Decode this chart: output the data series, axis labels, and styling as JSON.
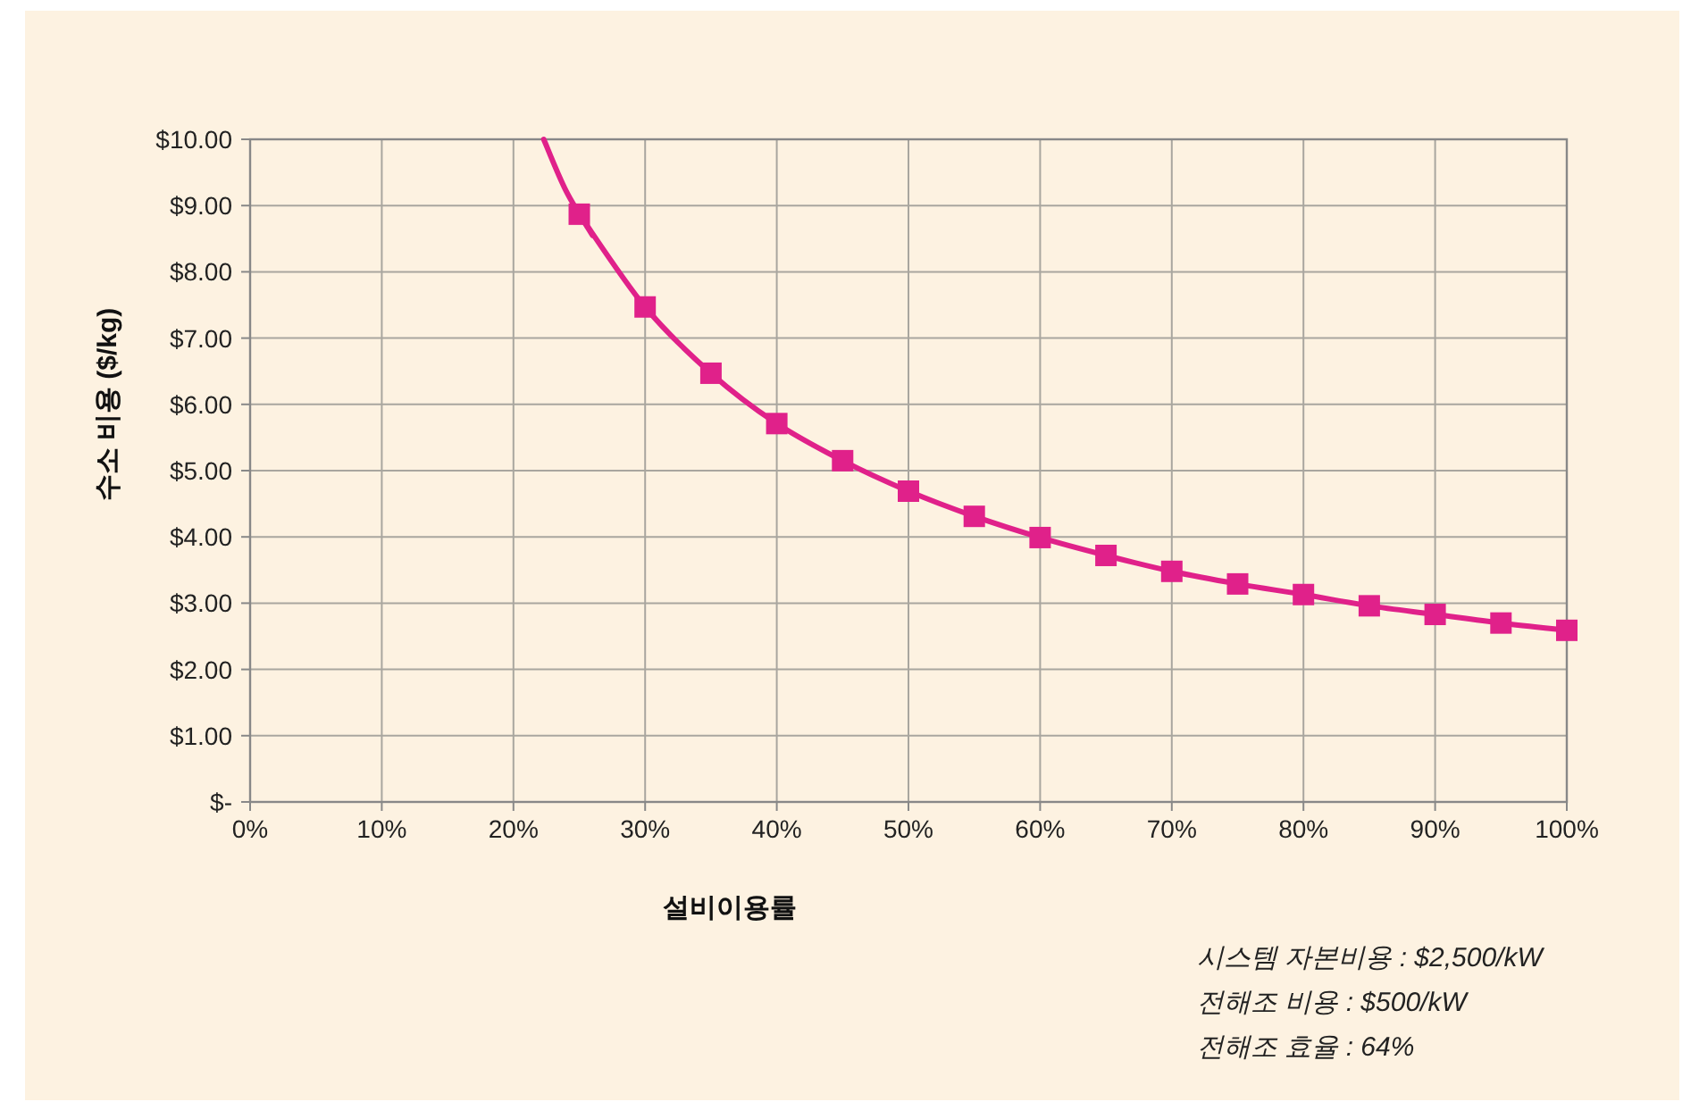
{
  "chart_data": {
    "type": "line",
    "xlabel": "설비이용률",
    "ylabel": "수소 비용 ($/kg)",
    "xlim": [
      0,
      100
    ],
    "ylim": [
      0,
      10
    ],
    "xticks": [
      {
        "value": 0,
        "label": "0%"
      },
      {
        "value": 10,
        "label": "10%"
      },
      {
        "value": 20,
        "label": "20%"
      },
      {
        "value": 30,
        "label": "30%"
      },
      {
        "value": 40,
        "label": "40%"
      },
      {
        "value": 50,
        "label": "50%"
      },
      {
        "value": 60,
        "label": "60%"
      },
      {
        "value": 70,
        "label": "70%"
      },
      {
        "value": 80,
        "label": "80%"
      },
      {
        "value": 90,
        "label": "90%"
      },
      {
        "value": 100,
        "label": "100%"
      }
    ],
    "yticks": [
      {
        "value": 0,
        "label": "$-"
      },
      {
        "value": 1,
        "label": "$1.00"
      },
      {
        "value": 2,
        "label": "$2.00"
      },
      {
        "value": 3,
        "label": "$3.00"
      },
      {
        "value": 4,
        "label": "$4.00"
      },
      {
        "value": 5,
        "label": "$5.00"
      },
      {
        "value": 6,
        "label": "$6.00"
      },
      {
        "value": 7,
        "label": "$7.00"
      },
      {
        "value": 8,
        "label": "$8.00"
      },
      {
        "value": 9,
        "label": "$9.00"
      },
      {
        "value": 10,
        "label": "$10.00"
      }
    ],
    "grid": true,
    "line_style": "solid",
    "series": [
      {
        "color": "#e0218a",
        "marker": "none",
        "x": [
          22.3,
          24,
          26
        ],
        "values": [
          10.0,
          9.22,
          8.55
        ]
      },
      {
        "color": "#e0218a",
        "marker": "square",
        "x": [
          25,
          30,
          35,
          40,
          45,
          50,
          55,
          60,
          65,
          70,
          75,
          80,
          85,
          90,
          95,
          100
        ],
        "values": [
          8.87,
          7.47,
          6.47,
          5.71,
          5.15,
          4.69,
          4.31,
          3.99,
          3.72,
          3.48,
          3.29,
          3.13,
          2.96,
          2.83,
          2.7,
          2.59
        ]
      }
    ],
    "annotations": [
      "시스템 자본비용 : $2,500/kW",
      "전해조 비용 : $500/kW",
      "전해조 효율 : 64%"
    ]
  }
}
